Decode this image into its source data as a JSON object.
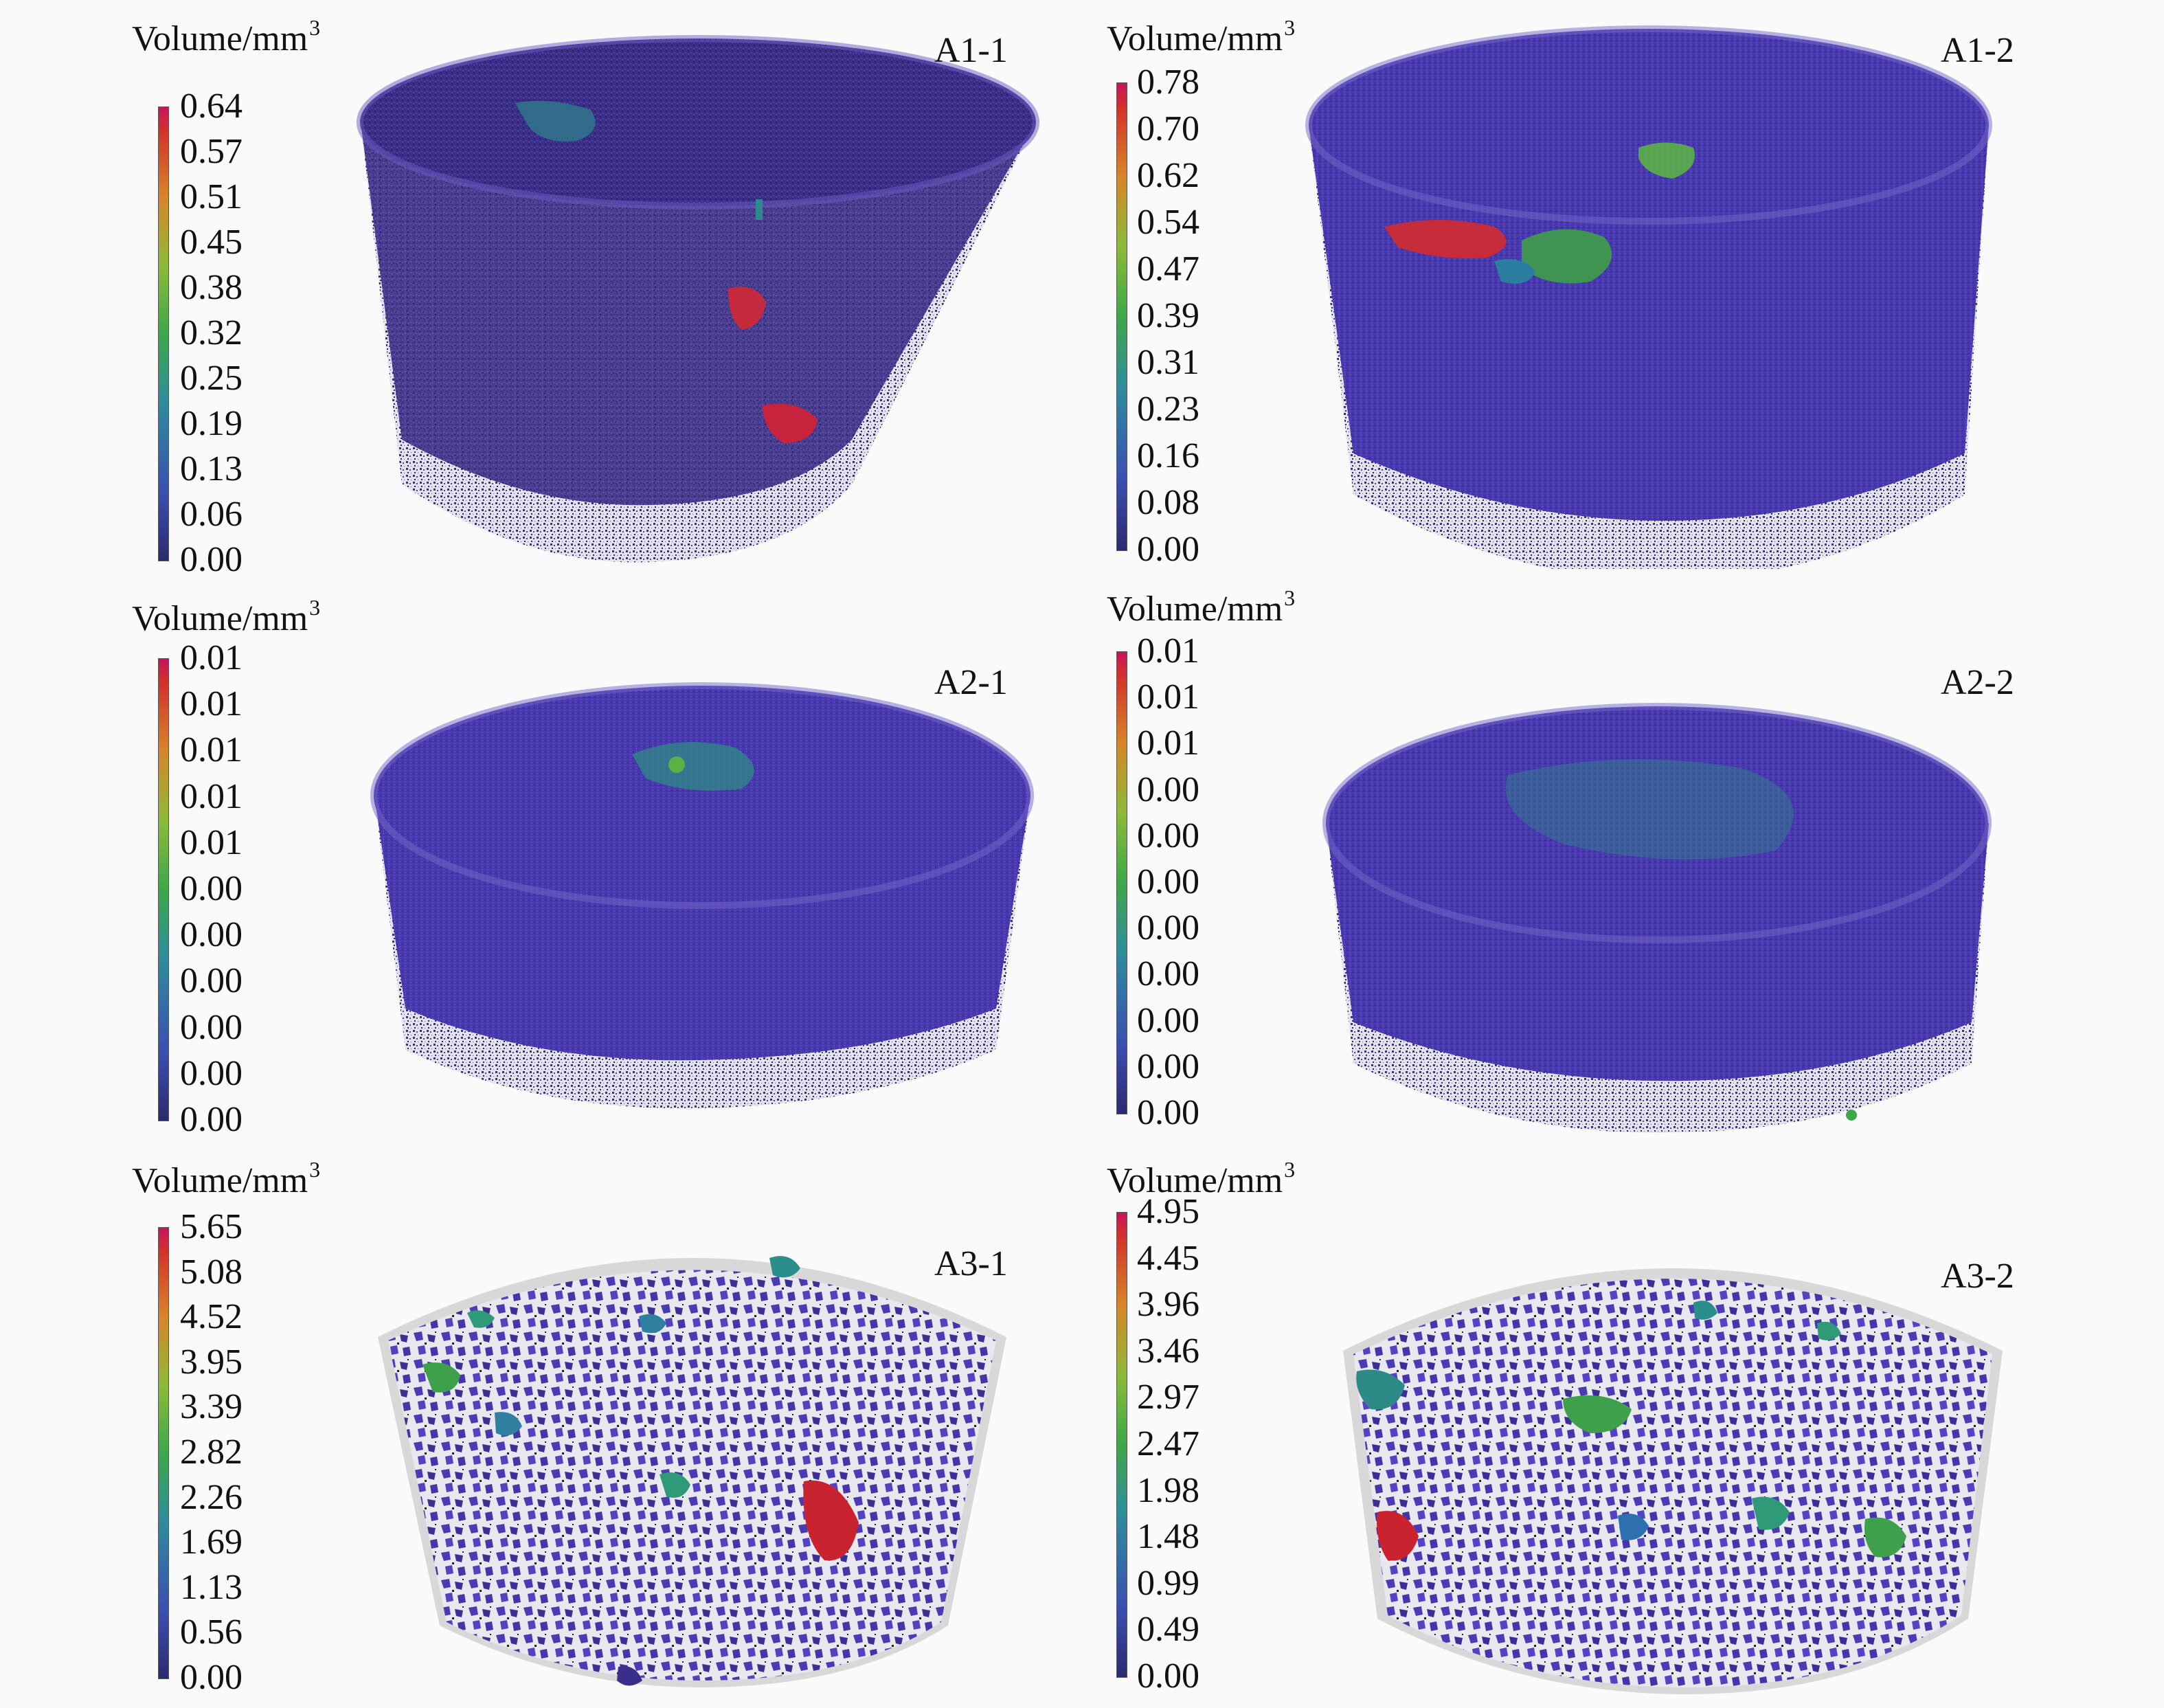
{
  "colors": {
    "pore_base": "#4536a6",
    "pore_light": "#5848c0",
    "pore_dark": "#30246e",
    "shell": "#d6d6d6",
    "background": "#fafafa"
  },
  "panels": [
    {
      "id": "A1-1",
      "volume_label": "Volume/mm",
      "volume_unit_exp": "3",
      "ticks": [
        "0.64",
        "0.57",
        "0.51",
        "0.45",
        "0.38",
        "0.32",
        "0.25",
        "0.19",
        "0.13",
        "0.06",
        "0.00"
      ]
    },
    {
      "id": "A1-2",
      "volume_label": "Volume/mm",
      "volume_unit_exp": "3",
      "ticks": [
        "0.78",
        "0.70",
        "0.62",
        "0.54",
        "0.47",
        "0.39",
        "0.31",
        "0.23",
        "0.16",
        "0.08",
        "0.00"
      ]
    },
    {
      "id": "A2-1",
      "volume_label": "Volume/mm",
      "volume_unit_exp": "3",
      "ticks": [
        "0.01",
        "0.01",
        "0.01",
        "0.01",
        "0.01",
        "0.00",
        "0.00",
        "0.00",
        "0.00",
        "0.00",
        "0.00"
      ]
    },
    {
      "id": "A2-2",
      "volume_label": "Volume/mm",
      "volume_unit_exp": "3",
      "ticks": [
        "0.01",
        "0.01",
        "0.01",
        "0.00",
        "0.00",
        "0.00",
        "0.00",
        "0.00",
        "0.00",
        "0.00",
        "0.00"
      ]
    },
    {
      "id": "A3-1",
      "volume_label": "Volume/mm",
      "volume_unit_exp": "3",
      "ticks": [
        "5.65",
        "5.08",
        "4.52",
        "3.95",
        "3.39",
        "2.82",
        "2.26",
        "1.69",
        "1.13",
        "0.56",
        "0.00"
      ]
    },
    {
      "id": "A3-2",
      "volume_label": "Volume/mm",
      "volume_unit_exp": "3",
      "ticks": [
        "4.95",
        "4.45",
        "3.96",
        "3.46",
        "2.97",
        "2.47",
        "1.98",
        "1.48",
        "0.99",
        "0.49",
        "0.00"
      ]
    }
  ]
}
